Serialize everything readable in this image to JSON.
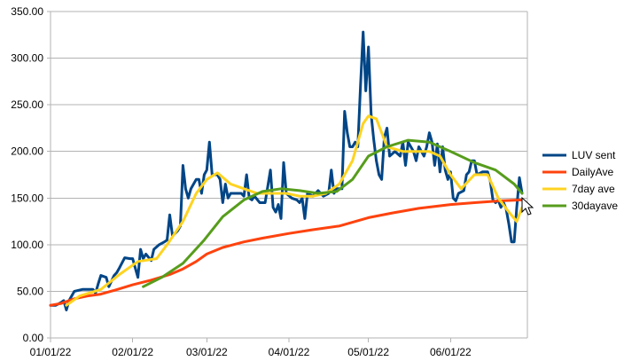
{
  "chart_data": {
    "type": "line",
    "title": "",
    "xlabel": "",
    "ylabel": "",
    "ylim": [
      0,
      350
    ],
    "yticks": [
      "0.00",
      "50.00",
      "100.00",
      "150.00",
      "200.00",
      "250.00",
      "300.00",
      "350.00"
    ],
    "xlim": [
      "2022-01-01",
      "2022-06-30"
    ],
    "xticks": [
      {
        "date": "2022-01-01",
        "label": "01/01/22"
      },
      {
        "date": "2022-02-01",
        "label": "02/01/22"
      },
      {
        "date": "2022-03-01",
        "label": "03/01/22"
      },
      {
        "date": "2022-04-01",
        "label": "04/01/22"
      },
      {
        "date": "2022-05-01",
        "label": "05/01/22"
      },
      {
        "date": "2022-06-01",
        "label": "06/01/22"
      }
    ],
    "grid": "horizontal",
    "legend_position": "right",
    "series": [
      {
        "name": "LUV sent",
        "color": "#004586",
        "points": [
          [
            "2022-01-01",
            35
          ],
          [
            "2022-01-03",
            35
          ],
          [
            "2022-01-05",
            38
          ],
          [
            "2022-01-06",
            40
          ],
          [
            "2022-01-07",
            30
          ],
          [
            "2022-01-08",
            40
          ],
          [
            "2022-01-10",
            50
          ],
          [
            "2022-01-13",
            52
          ],
          [
            "2022-01-17",
            52
          ],
          [
            "2022-01-18",
            48
          ],
          [
            "2022-01-19",
            58
          ],
          [
            "2022-01-20",
            67
          ],
          [
            "2022-01-22",
            65
          ],
          [
            "2022-01-23",
            55
          ],
          [
            "2022-01-25",
            67
          ],
          [
            "2022-01-26",
            70
          ],
          [
            "2022-01-27",
            75
          ],
          [
            "2022-01-29",
            86
          ],
          [
            "2022-01-31",
            85
          ],
          [
            "2022-02-01",
            85
          ],
          [
            "2022-02-02",
            75
          ],
          [
            "2022-02-03",
            65
          ],
          [
            "2022-02-04",
            95
          ],
          [
            "2022-02-05",
            85
          ],
          [
            "2022-02-06",
            90
          ],
          [
            "2022-02-08",
            83
          ],
          [
            "2022-02-09",
            95
          ],
          [
            "2022-02-11",
            100
          ],
          [
            "2022-02-13",
            103
          ],
          [
            "2022-02-14",
            105
          ],
          [
            "2022-02-15",
            132
          ],
          [
            "2022-02-16",
            110
          ],
          [
            "2022-02-17",
            112
          ],
          [
            "2022-02-18",
            115
          ],
          [
            "2022-02-19",
            120
          ],
          [
            "2022-02-20",
            185
          ],
          [
            "2022-02-21",
            160
          ],
          [
            "2022-02-22",
            150
          ],
          [
            "2022-02-23",
            160
          ],
          [
            "2022-02-25",
            170
          ],
          [
            "2022-02-26",
            170
          ],
          [
            "2022-02-27",
            155
          ],
          [
            "2022-02-28",
            175
          ],
          [
            "2022-03-01",
            180
          ],
          [
            "2022-03-02",
            210
          ],
          [
            "2022-03-03",
            175
          ],
          [
            "2022-03-05",
            175
          ],
          [
            "2022-03-06",
            170
          ],
          [
            "2022-03-07",
            145
          ],
          [
            "2022-03-08",
            165
          ],
          [
            "2022-03-09",
            150
          ],
          [
            "2022-03-10",
            155
          ],
          [
            "2022-03-14",
            155
          ],
          [
            "2022-03-15",
            152
          ],
          [
            "2022-03-16",
            175
          ],
          [
            "2022-03-17",
            150
          ],
          [
            "2022-03-18",
            148
          ],
          [
            "2022-03-19",
            152
          ],
          [
            "2022-03-21",
            145
          ],
          [
            "2022-03-23",
            145
          ],
          [
            "2022-03-25",
            180
          ],
          [
            "2022-03-26",
            140
          ],
          [
            "2022-03-27",
            135
          ],
          [
            "2022-03-28",
            143
          ],
          [
            "2022-03-29",
            128
          ],
          [
            "2022-03-30",
            188
          ],
          [
            "2022-03-31",
            155
          ],
          [
            "2022-04-02",
            150
          ],
          [
            "2022-04-04",
            148
          ],
          [
            "2022-04-05",
            145
          ],
          [
            "2022-04-06",
            150
          ],
          [
            "2022-04-07",
            128
          ],
          [
            "2022-04-08",
            155
          ],
          [
            "2022-04-10",
            152
          ],
          [
            "2022-04-12",
            158
          ],
          [
            "2022-04-14",
            152
          ],
          [
            "2022-04-16",
            155
          ],
          [
            "2022-04-17",
            180
          ],
          [
            "2022-04-18",
            155
          ],
          [
            "2022-04-19",
            160
          ],
          [
            "2022-04-21",
            160
          ],
          [
            "2022-04-22",
            243
          ],
          [
            "2022-04-23",
            220
          ],
          [
            "2022-04-24",
            205
          ],
          [
            "2022-04-25",
            205
          ],
          [
            "2022-04-26",
            210
          ],
          [
            "2022-04-27",
            205
          ],
          [
            "2022-04-28",
            270
          ],
          [
            "2022-04-29",
            328
          ],
          [
            "2022-04-30",
            265
          ],
          [
            "2022-05-01",
            312
          ],
          [
            "2022-05-02",
            240
          ],
          [
            "2022-05-03",
            213
          ],
          [
            "2022-05-04",
            190
          ],
          [
            "2022-05-05",
            175
          ],
          [
            "2022-05-06",
            170
          ],
          [
            "2022-05-07",
            215
          ],
          [
            "2022-05-08",
            225
          ],
          [
            "2022-05-09",
            195
          ],
          [
            "2022-05-11",
            200
          ],
          [
            "2022-05-13",
            195
          ],
          [
            "2022-05-14",
            210
          ],
          [
            "2022-05-15",
            185
          ],
          [
            "2022-05-16",
            210
          ],
          [
            "2022-05-18",
            200
          ],
          [
            "2022-05-19",
            190
          ],
          [
            "2022-05-20",
            205
          ],
          [
            "2022-05-22",
            195
          ],
          [
            "2022-05-23",
            205
          ],
          [
            "2022-05-24",
            220
          ],
          [
            "2022-05-25",
            210
          ],
          [
            "2022-05-26",
            185
          ],
          [
            "2022-05-27",
            208
          ],
          [
            "2022-05-28",
            178
          ],
          [
            "2022-05-29",
            205
          ],
          [
            "2022-05-30",
            180
          ],
          [
            "2022-05-31",
            170
          ],
          [
            "2022-06-01",
            178
          ],
          [
            "2022-06-02",
            150
          ],
          [
            "2022-06-03",
            147
          ],
          [
            "2022-06-04",
            155
          ],
          [
            "2022-06-06",
            158
          ],
          [
            "2022-06-07",
            175
          ],
          [
            "2022-06-08",
            178
          ],
          [
            "2022-06-09",
            190
          ],
          [
            "2022-06-10",
            190
          ],
          [
            "2022-06-11",
            175
          ],
          [
            "2022-06-13",
            178
          ],
          [
            "2022-06-15",
            178
          ],
          [
            "2022-06-16",
            168
          ],
          [
            "2022-06-17",
            148
          ],
          [
            "2022-06-18",
            145
          ],
          [
            "2022-06-19",
            148
          ],
          [
            "2022-06-20",
            140
          ],
          [
            "2022-06-21",
            145
          ],
          [
            "2022-06-22",
            138
          ],
          [
            "2022-06-23",
            122
          ],
          [
            "2022-06-24",
            103
          ],
          [
            "2022-06-25",
            103
          ],
          [
            "2022-06-26",
            140
          ],
          [
            "2022-06-27",
            172
          ],
          [
            "2022-06-28",
            155
          ]
        ]
      },
      {
        "name": "DailyAve",
        "color": "#ff420e",
        "points": [
          [
            "2022-01-01",
            35
          ],
          [
            "2022-01-05",
            37
          ],
          [
            "2022-01-10",
            42
          ],
          [
            "2022-01-15",
            45
          ],
          [
            "2022-01-20",
            47
          ],
          [
            "2022-01-25",
            51
          ],
          [
            "2022-02-01",
            57
          ],
          [
            "2022-02-08",
            62
          ],
          [
            "2022-02-15",
            68
          ],
          [
            "2022-02-20",
            74
          ],
          [
            "2022-02-25",
            82
          ],
          [
            "2022-03-01",
            90
          ],
          [
            "2022-03-07",
            97
          ],
          [
            "2022-03-15",
            103
          ],
          [
            "2022-03-22",
            107
          ],
          [
            "2022-04-01",
            112
          ],
          [
            "2022-04-10",
            116
          ],
          [
            "2022-04-20",
            120
          ],
          [
            "2022-04-25",
            124
          ],
          [
            "2022-05-01",
            129
          ],
          [
            "2022-05-10",
            134
          ],
          [
            "2022-05-20",
            139
          ],
          [
            "2022-06-01",
            143
          ],
          [
            "2022-06-10",
            145
          ],
          [
            "2022-06-20",
            147
          ],
          [
            "2022-06-28",
            148
          ]
        ]
      },
      {
        "name": "7day ave",
        "color": "#ffd320",
        "points": [
          [
            "2022-01-07",
            35
          ],
          [
            "2022-01-12",
            45
          ],
          [
            "2022-01-20",
            52
          ],
          [
            "2022-01-27",
            68
          ],
          [
            "2022-02-03",
            82
          ],
          [
            "2022-02-10",
            85
          ],
          [
            "2022-02-14",
            100
          ],
          [
            "2022-02-20",
            125
          ],
          [
            "2022-02-25",
            155
          ],
          [
            "2022-03-01",
            170
          ],
          [
            "2022-03-05",
            177
          ],
          [
            "2022-03-10",
            165
          ],
          [
            "2022-03-15",
            160
          ],
          [
            "2022-03-20",
            155
          ],
          [
            "2022-03-25",
            155
          ],
          [
            "2022-03-31",
            155
          ],
          [
            "2022-04-05",
            152
          ],
          [
            "2022-04-10",
            152
          ],
          [
            "2022-04-15",
            155
          ],
          [
            "2022-04-20",
            165
          ],
          [
            "2022-04-25",
            190
          ],
          [
            "2022-04-29",
            230
          ],
          [
            "2022-05-01",
            238
          ],
          [
            "2022-05-04",
            235
          ],
          [
            "2022-05-08",
            205
          ],
          [
            "2022-05-14",
            200
          ],
          [
            "2022-05-19",
            200
          ],
          [
            "2022-05-24",
            200
          ],
          [
            "2022-05-28",
            195
          ],
          [
            "2022-06-01",
            175
          ],
          [
            "2022-06-05",
            160
          ],
          [
            "2022-06-10",
            175
          ],
          [
            "2022-06-15",
            175
          ],
          [
            "2022-06-19",
            150
          ],
          [
            "2022-06-23",
            135
          ],
          [
            "2022-06-26",
            125
          ],
          [
            "2022-06-28",
            140
          ]
        ]
      },
      {
        "name": "30dayave",
        "color": "#579d1c",
        "points": [
          [
            "2022-02-05",
            55
          ],
          [
            "2022-02-12",
            65
          ],
          [
            "2022-02-20",
            80
          ],
          [
            "2022-02-28",
            105
          ],
          [
            "2022-03-07",
            130
          ],
          [
            "2022-03-15",
            148
          ],
          [
            "2022-03-22",
            157
          ],
          [
            "2022-03-29",
            160
          ],
          [
            "2022-04-05",
            158
          ],
          [
            "2022-04-12",
            155
          ],
          [
            "2022-04-19",
            157
          ],
          [
            "2022-04-25",
            170
          ],
          [
            "2022-05-01",
            195
          ],
          [
            "2022-05-08",
            205
          ],
          [
            "2022-05-16",
            212
          ],
          [
            "2022-05-24",
            210
          ],
          [
            "2022-06-01",
            200
          ],
          [
            "2022-06-10",
            188
          ],
          [
            "2022-06-18",
            180
          ],
          [
            "2022-06-25",
            165
          ],
          [
            "2022-06-28",
            155
          ]
        ]
      }
    ]
  }
}
